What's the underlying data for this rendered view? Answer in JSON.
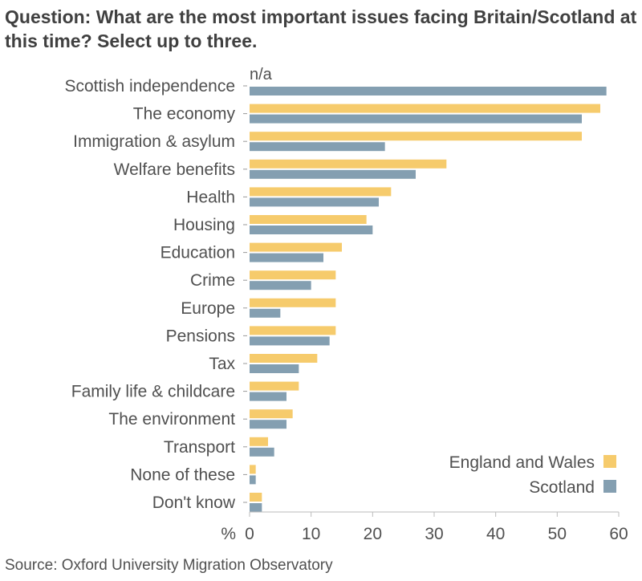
{
  "chart_data": {
    "type": "bar",
    "orientation": "horizontal",
    "title": "Question: What are the most important issues facing Britain/Scotland at this time? Select up to three.",
    "source": "Source: Oxford University Migration Observatory",
    "xlabel": "%",
    "xlim": [
      0,
      60
    ],
    "xticks": [
      0,
      10,
      20,
      30,
      40,
      50,
      60
    ],
    "grid": false,
    "legend_position": "bottom-right",
    "annotation": "n/a",
    "categories": [
      "Scottish independence",
      "The economy",
      "Immigration & asylum",
      "Welfare benefits",
      "Health",
      "Housing",
      "Education",
      "Crime",
      "Europe",
      "Pensions",
      "Tax",
      "Family life & childcare",
      "The environment",
      "Transport",
      "None of these",
      "Don't know"
    ],
    "series": [
      {
        "name": "England and Wales",
        "color": "#f6cb6c",
        "values": [
          null,
          57,
          54,
          32,
          23,
          19,
          15,
          14,
          14,
          14,
          11,
          8,
          7,
          3,
          1,
          2
        ]
      },
      {
        "name": "Scotland",
        "color": "#849fb1",
        "values": [
          58,
          54,
          22,
          27,
          21,
          20,
          12,
          10,
          5,
          13,
          8,
          6,
          6,
          4,
          1,
          2
        ]
      }
    ]
  }
}
